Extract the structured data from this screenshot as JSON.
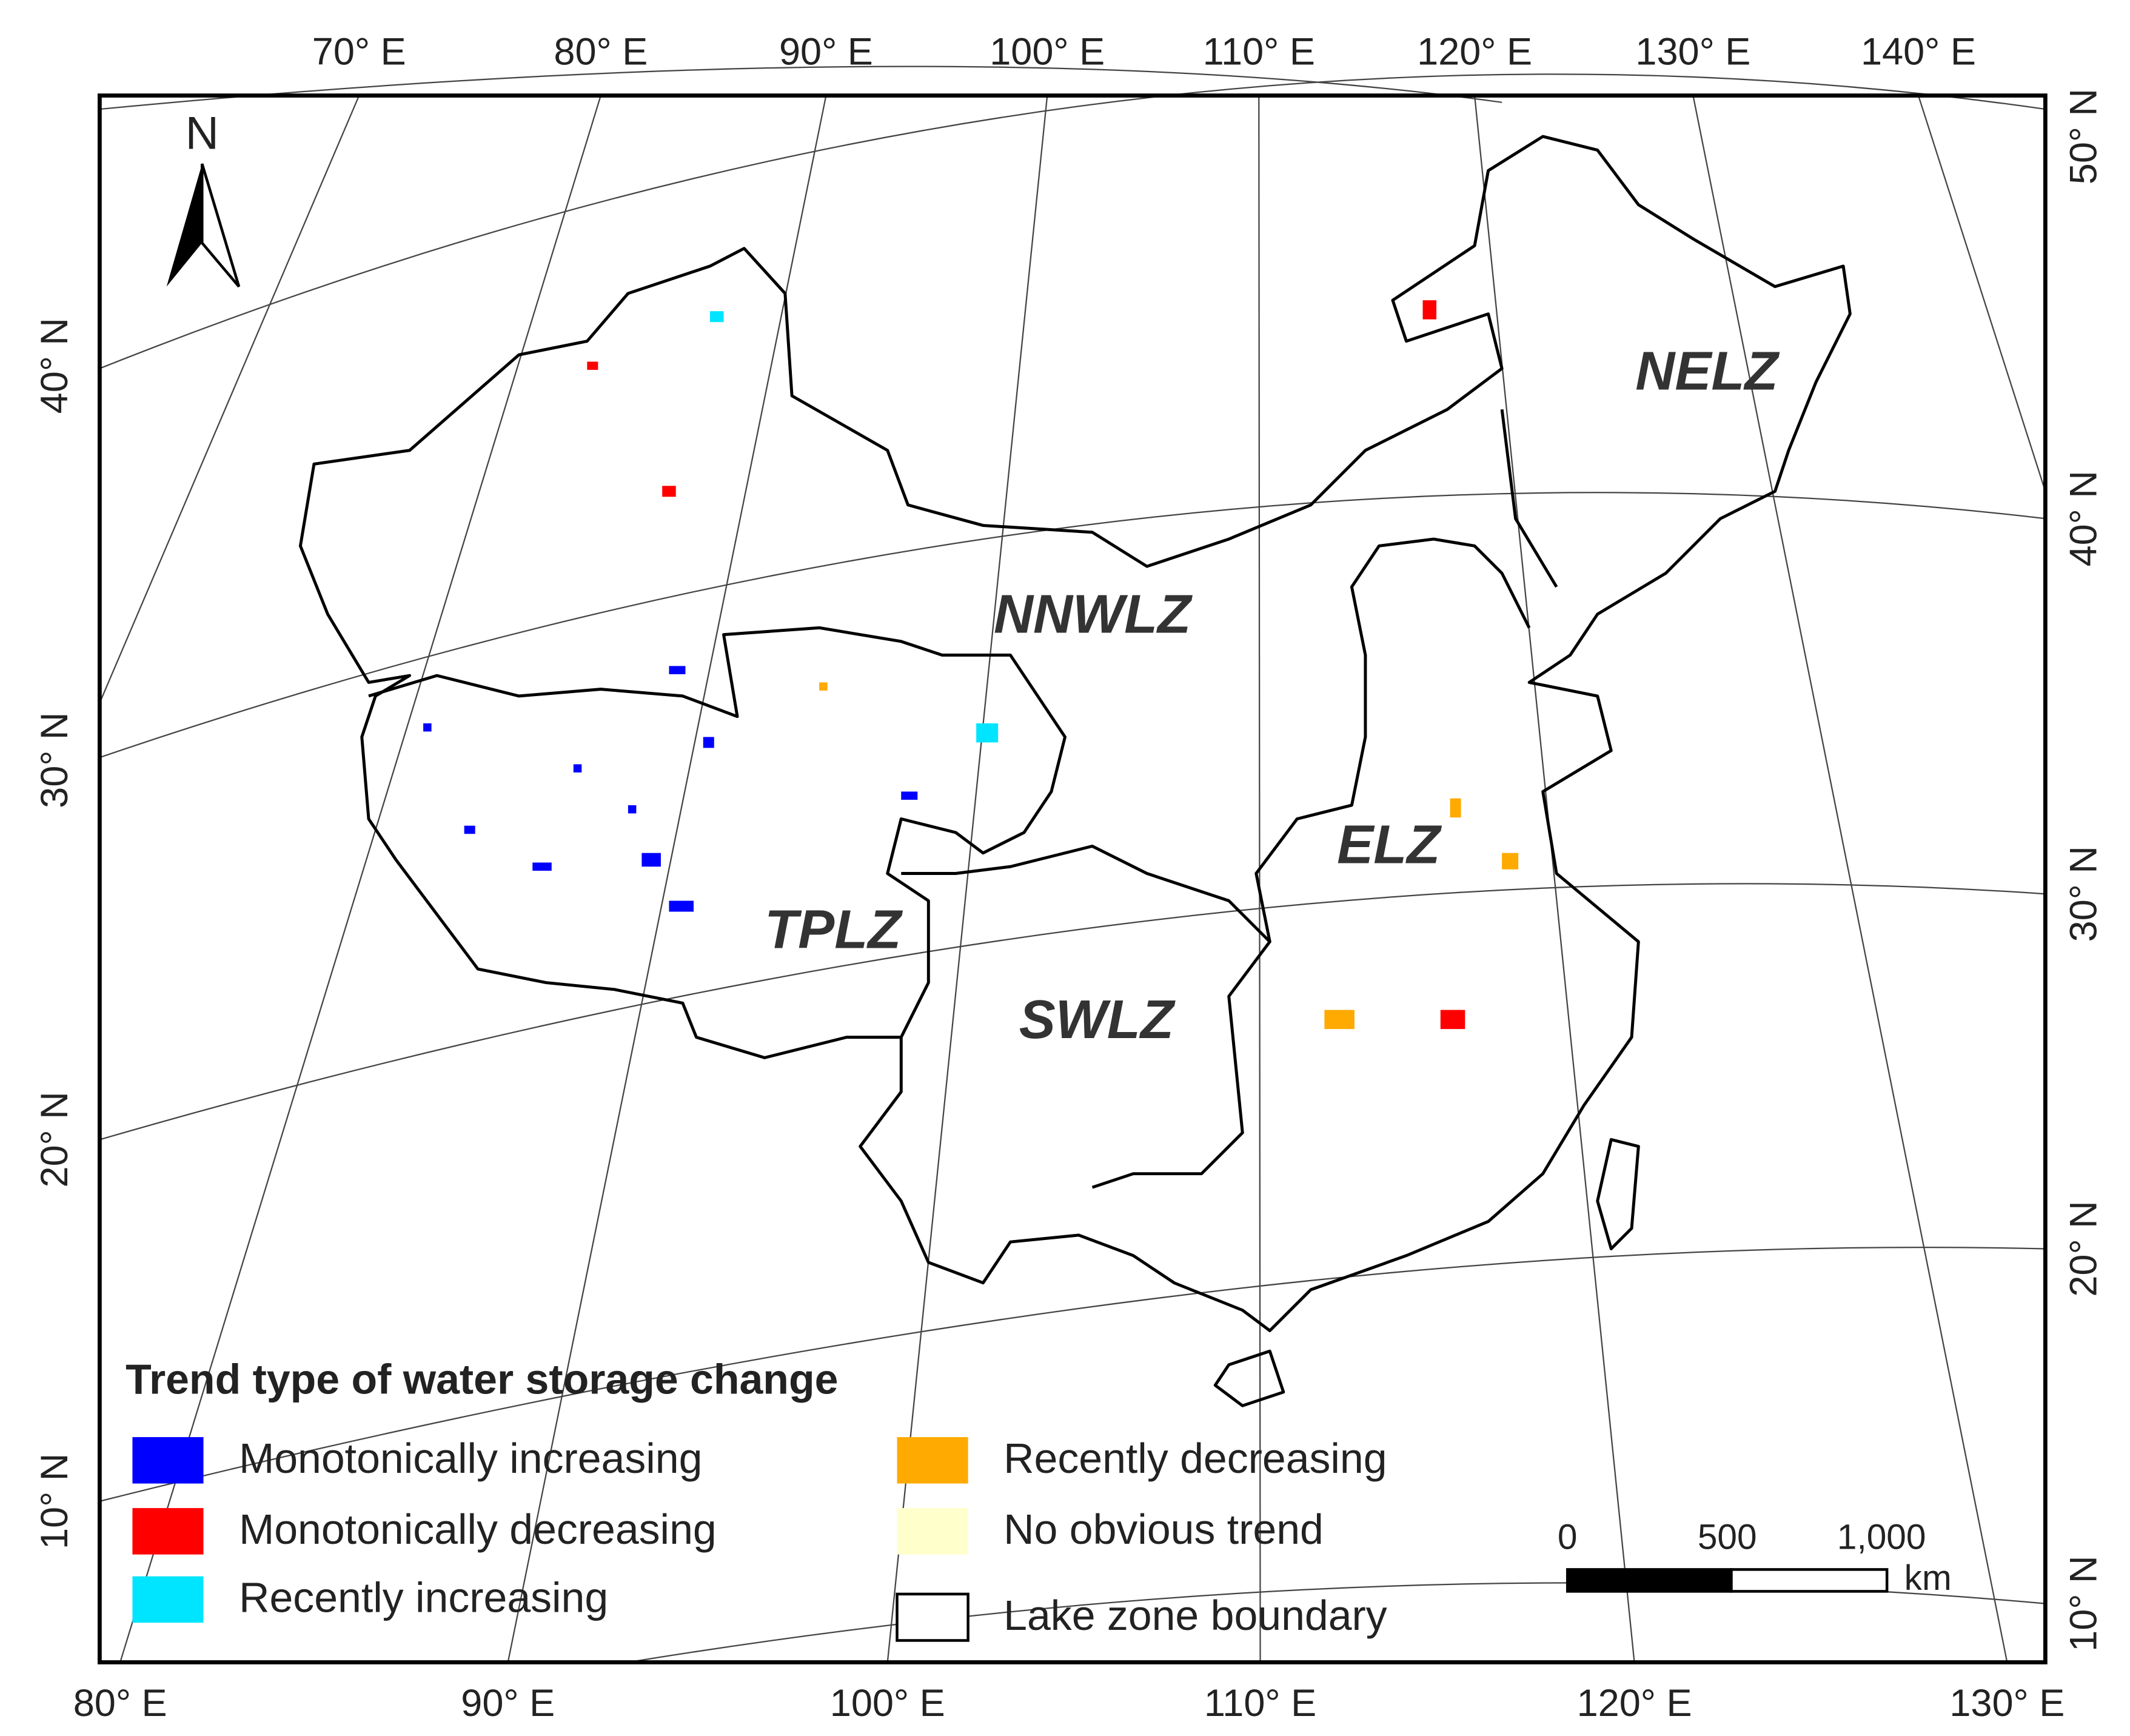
{
  "map": {
    "north": "N",
    "graticule": {
      "top": [
        "70° E",
        "80° E",
        "90° E",
        "100° E",
        "110° E",
        "120° E",
        "130° E",
        "140° E"
      ],
      "bottom": [
        "80° E",
        "90° E",
        "100° E",
        "110° E",
        "120° E",
        "130° E"
      ],
      "left": [
        "40° N",
        "30° N",
        "20° N",
        "10° N"
      ],
      "right": [
        "50° N",
        "40° N",
        "30° N",
        "20° N",
        "10° N"
      ]
    },
    "zones": [
      "NELZ",
      "NNWLZ",
      "TPLZ",
      "SWLZ",
      "ELZ"
    ],
    "legend": {
      "title": "Trend type of water storage change",
      "items": [
        {
          "label": "Monotonically increasing",
          "color": "#0000ff"
        },
        {
          "label": "Monotonically decreasing",
          "color": "#ff0000"
        },
        {
          "label": "Recently increasing",
          "color": "#00e5ff"
        },
        {
          "label": "Recently decreasing",
          "color": "#ffaa00"
        },
        {
          "label": "No obvious trend",
          "color": "#ffffcc"
        },
        {
          "label": "Lake zone boundary",
          "color": "#ffffff"
        }
      ]
    },
    "scale_bar": {
      "labels": [
        "0",
        "500",
        "1,000"
      ],
      "unit": "km"
    }
  }
}
